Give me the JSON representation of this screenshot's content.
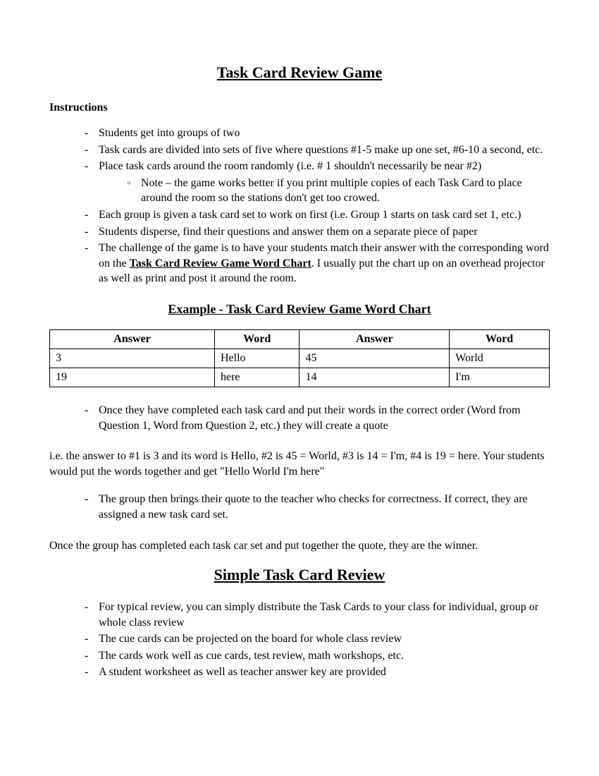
{
  "typography": {
    "font_family": "Times New Roman",
    "body_fontsize": 16,
    "title_fontsize": 22,
    "example_title_fontsize": 18
  },
  "colors": {
    "text": "#000000",
    "background": "#ffffff",
    "table_border": "#000000"
  },
  "title": "Task Card Review Game",
  "instructions_heading": "Instructions",
  "instructions": {
    "item1": "Students get into groups of two",
    "item2": "Task cards are divided into sets of five where questions #1-5 make up one set, #6-10 a second, etc.",
    "item3": "Place task cards around the room randomly (i.e. # 1 shouldn't necessarily be near #2)",
    "item3_sub1": "Note – the game works better if you print multiple copies of each Task Card to place around the room so the stations don't get too crowed.",
    "item4": "Each group is given a task card set to work on first (i.e. Group 1 starts on task card set 1, etc.)",
    "item5": "Students disperse, find their questions and answer them on a separate piece of paper",
    "item6_pre": "The challenge of the game is to have your students match their answer with the corresponding word on the ",
    "item6_bold": "Task Card Review Game Word Chart",
    "item6_post": ".  I usually put the chart up on an overhead projector as well as print and post it around the room."
  },
  "example_title": "Example - Task Card Review Game Word Chart",
  "table": {
    "type": "table",
    "columns": [
      "Answer",
      "Word",
      "Answer",
      "Word"
    ],
    "column_widths_pct": [
      33,
      17,
      30,
      20
    ],
    "rows": [
      [
        "3",
        "Hello",
        "45",
        "World"
      ],
      [
        "19",
        "here",
        "14",
        "I'm"
      ]
    ]
  },
  "post_table": {
    "bullet1": "Once they have completed each task card and put their words in the correct order (Word from Question 1, Word from Question 2, etc.) they will create a quote",
    "example_text": "i.e. the answer to #1 is 3 and its word is Hello, #2 is 45 = World, #3 is 14 = I'm, #4 is 19 = here.  Your students would put the words together and get \"Hello World I'm here\"",
    "bullet2": "The group then brings their quote to the teacher who checks for correctness.  If correct, they are assigned a new task card set.",
    "winner_text": "Once the group has completed each task car set and put together the quote, they are the winner."
  },
  "simple_title": "Simple Task Card Review",
  "simple_list": {
    "item1": "For typical review, you can simply distribute the Task Cards to your class for individual, group or whole class review",
    "item2": "The cue cards can be projected on the board for whole class review",
    "item3": "The cards work well as cue cards, test review, math workshops, etc.",
    "item4": "A student worksheet as well as teacher answer key are provided"
  }
}
